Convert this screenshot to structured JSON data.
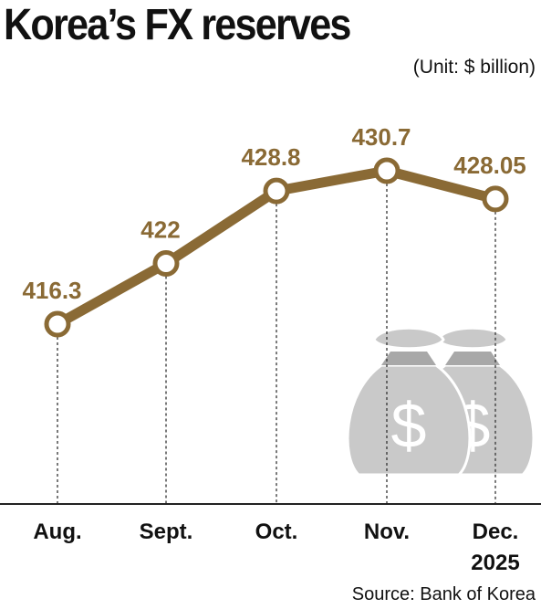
{
  "title": "Korea’s FX reserves",
  "unit_note": "(Unit: $ billion)",
  "source": "Source: Bank of Korea",
  "colors": {
    "line": "#8a6a35",
    "marker_fill": "#ffffff",
    "axis": "#222222",
    "guide": "#333333",
    "bag": "#c9c9c9",
    "bag_shadow": "#a8a8a8"
  },
  "icons": [
    "money-bag-icon",
    "money-bag-icon"
  ],
  "chart_data": {
    "type": "line",
    "categories": [
      "Aug.",
      "Sept.",
      "Oct.",
      "Nov.",
      "Dec."
    ],
    "category_sublabels": [
      "",
      "",
      "",
      "",
      "2025"
    ],
    "values": [
      416.3,
      422,
      428.8,
      430.7,
      428.05
    ],
    "value_labels": [
      "416.3",
      "422",
      "428.8",
      "430.7",
      "428.05"
    ],
    "title": "Korea’s FX reserves",
    "ylabel": "",
    "xlabel": "",
    "grid": false
  }
}
